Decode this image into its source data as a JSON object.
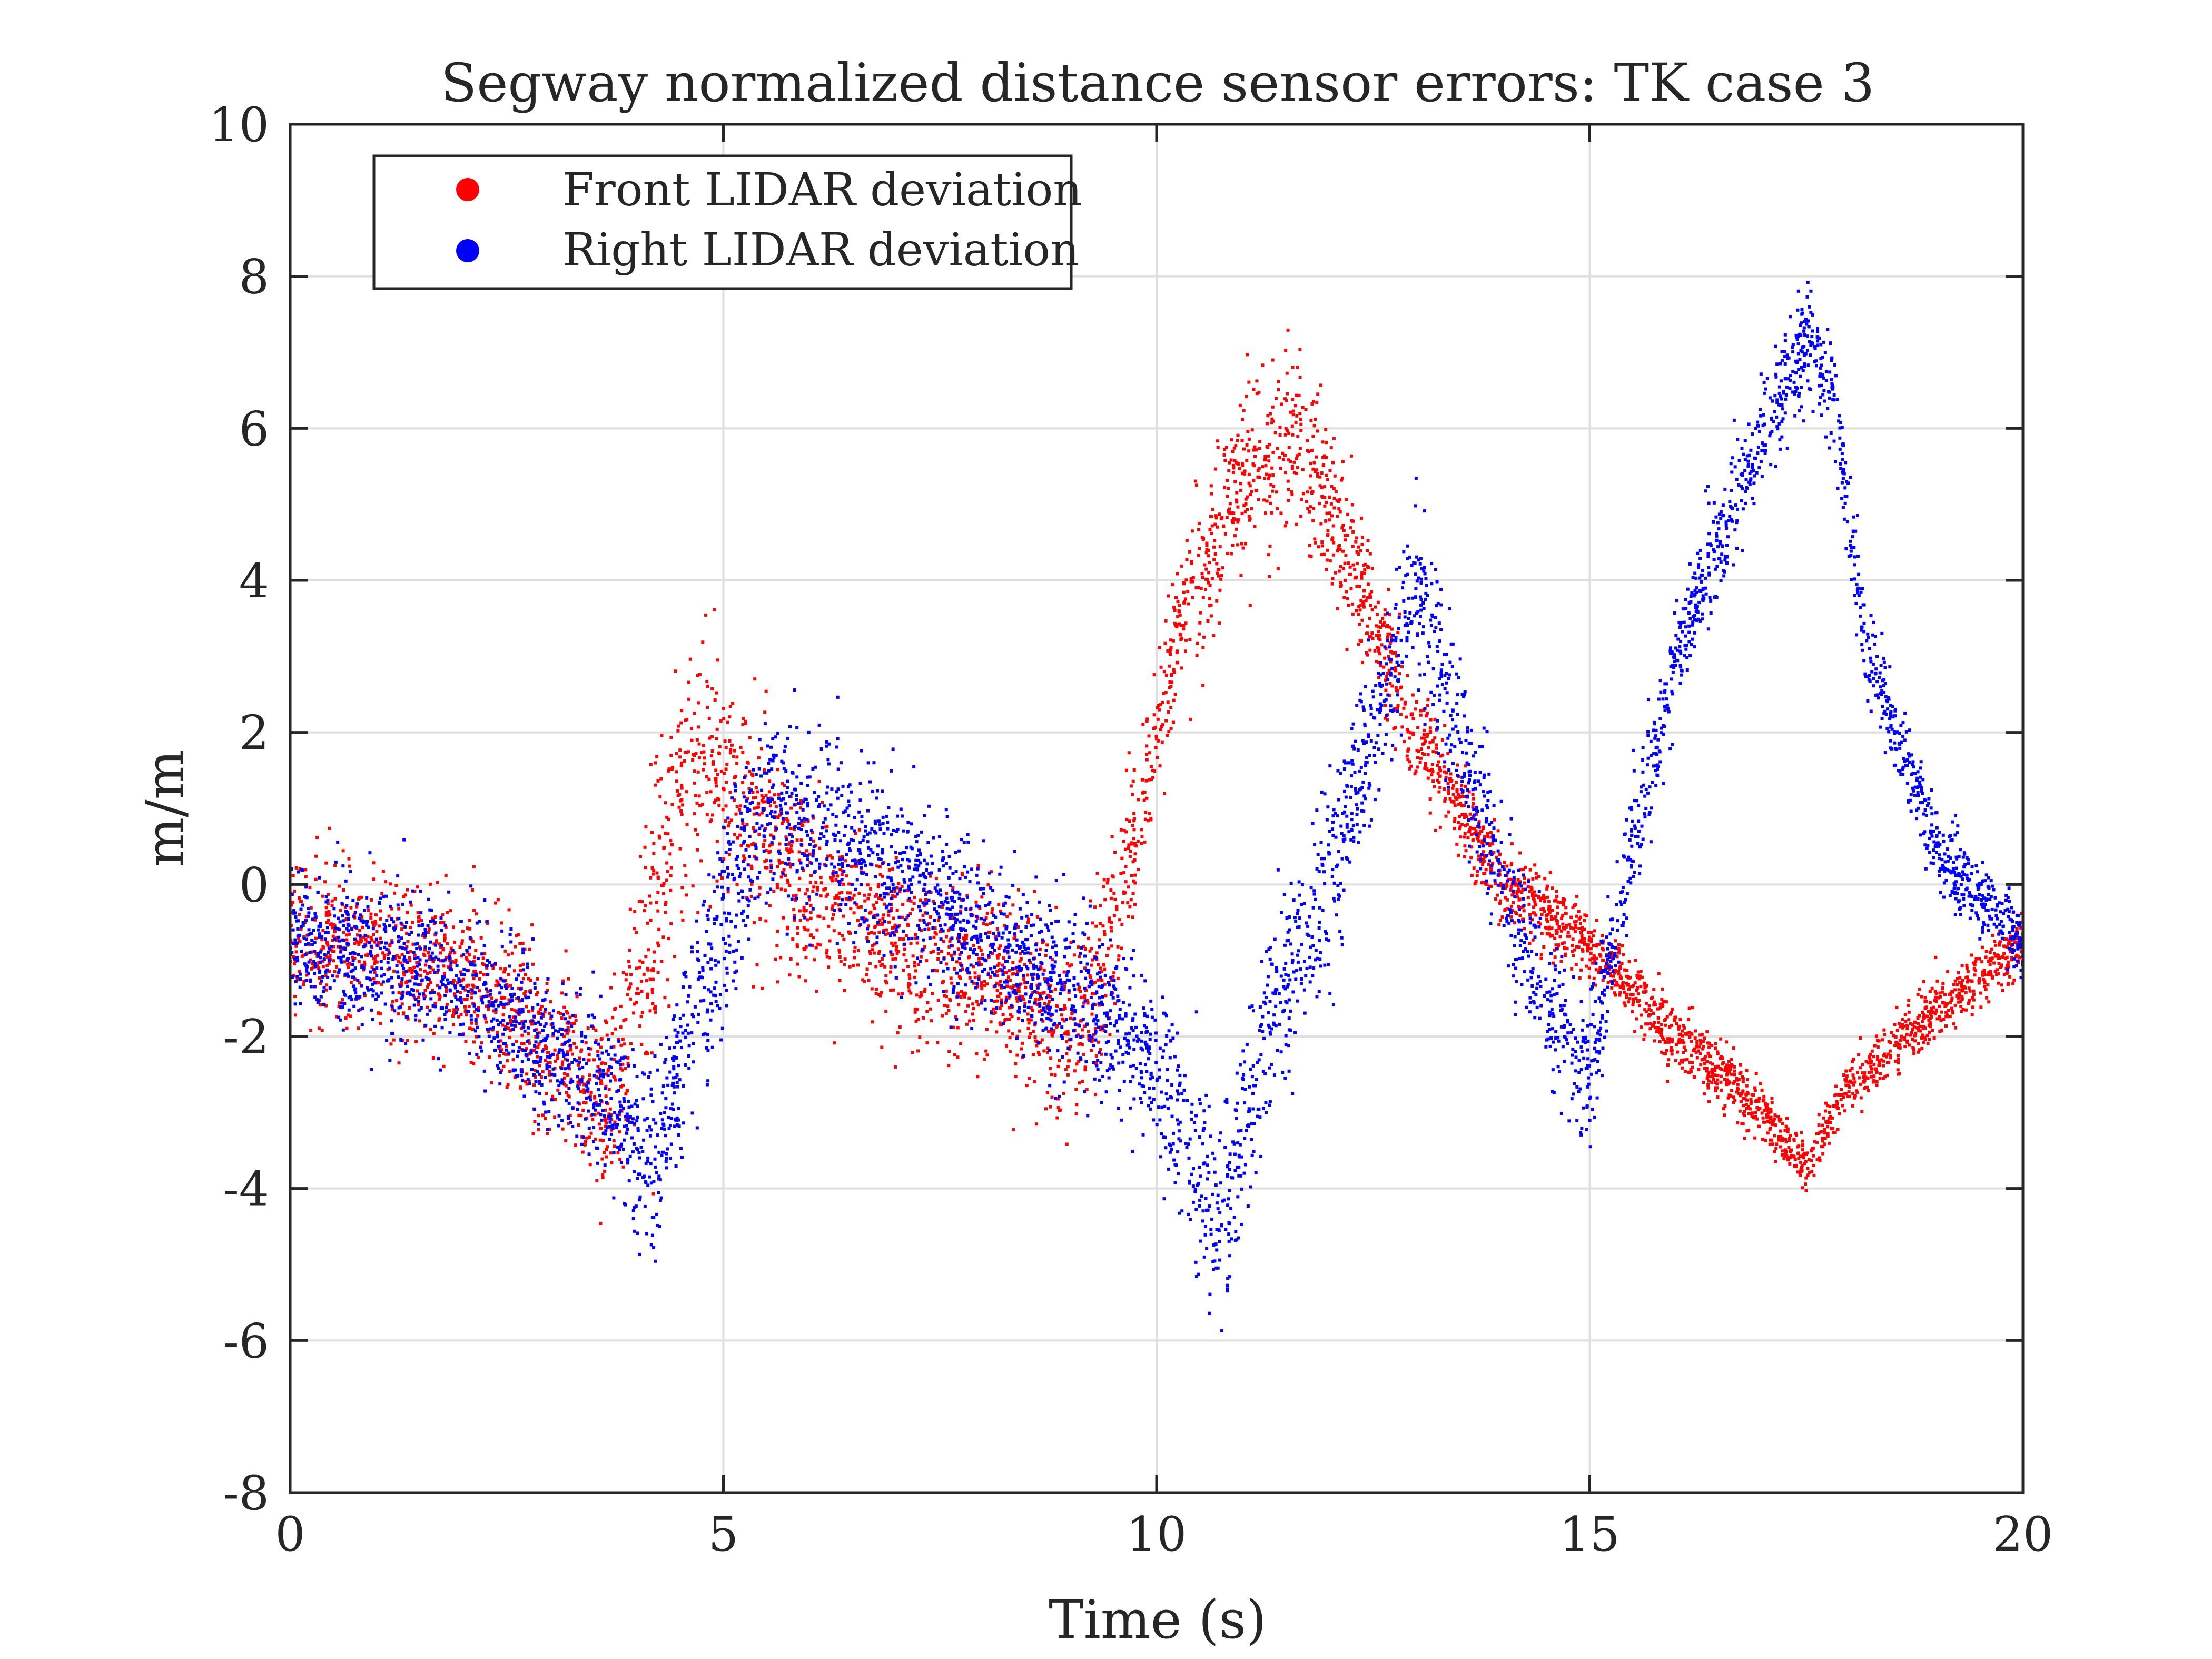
{
  "chart_data": {
    "type": "scatter",
    "title": "Segway normalized distance sensor errors: TK case 3",
    "xlabel": "Time (s)",
    "ylabel": "m/m",
    "xlim": [
      0,
      20
    ],
    "ylim": [
      -8,
      10
    ],
    "xticks": [
      0,
      5,
      10,
      15,
      20
    ],
    "yticks": [
      -8,
      -6,
      -4,
      -2,
      0,
      2,
      4,
      6,
      8,
      10
    ],
    "xtick_labels": [
      "0",
      "5",
      "10",
      "15",
      "20"
    ],
    "ytick_labels": [
      "-8",
      "-6",
      "-4",
      "-2",
      "0",
      "2",
      "4",
      "6",
      "8",
      "10"
    ],
    "grid": true,
    "legend_position": "top-left",
    "series": [
      {
        "name": "Front LIDAR deviation",
        "color": "#ff0000",
        "trend": {
          "x": [
            0,
            1,
            2,
            3,
            3.7,
            4.0,
            4.4,
            4.8,
            5.3,
            6.0,
            7.0,
            8.0,
            9.0,
            9.3,
            9.7,
            10.3,
            11.0,
            11.5,
            12.0,
            12.5,
            13.0,
            14.0,
            15.0,
            16.0,
            17.0,
            17.5,
            18.0,
            19.0,
            20.0
          ],
          "y": [
            -0.7,
            -0.9,
            -1.2,
            -2.2,
            -3.0,
            -1.5,
            0.8,
            1.8,
            1.0,
            0.0,
            -0.7,
            -1.2,
            -1.9,
            -1.5,
            0.5,
            3.5,
            5.4,
            6.0,
            5.0,
            3.5,
            2.0,
            0.0,
            -0.8,
            -2.0,
            -3.0,
            -3.7,
            -2.6,
            -1.7,
            -0.7
          ]
        },
        "spread": [
          0.5,
          0.5,
          0.55,
          0.55,
          0.6,
          0.9,
          1.0,
          0.9,
          0.7,
          0.6,
          0.55,
          0.55,
          0.55,
          0.6,
          0.5,
          0.5,
          0.55,
          0.6,
          0.55,
          0.4,
          0.3,
          0.25,
          0.2,
          0.2,
          0.2,
          0.2,
          0.2,
          0.2,
          0.2
        ]
      },
      {
        "name": "Right LIDAR deviation",
        "color": "#0000ff",
        "trend": {
          "x": [
            0,
            1,
            2,
            3,
            3.7,
            4.2,
            4.6,
            5.0,
            5.5,
            6.0,
            7.0,
            8.0,
            9.0,
            9.7,
            10.3,
            10.7,
            11.3,
            12.0,
            12.5,
            13.0,
            13.5,
            14.0,
            14.5,
            15.0,
            15.4,
            16.0,
            16.5,
            17.0,
            17.5,
            17.8,
            18.2,
            19.0,
            20.0
          ],
          "y": [
            -0.7,
            -1.0,
            -1.3,
            -2.2,
            -2.8,
            -3.7,
            -2.0,
            -0.5,
            1.0,
            0.8,
            0.2,
            -0.8,
            -1.4,
            -2.0,
            -3.0,
            -4.5,
            -2.0,
            0.0,
            2.0,
            4.0,
            2.0,
            0.0,
            -1.5,
            -2.5,
            0.0,
            3.0,
            4.5,
            6.0,
            7.2,
            6.5,
            3.0,
            0.5,
            -0.8
          ]
        },
        "spread": [
          0.4,
          0.45,
          0.5,
          0.5,
          0.55,
          0.6,
          0.7,
          0.7,
          0.7,
          0.65,
          0.6,
          0.55,
          0.55,
          0.5,
          0.6,
          0.7,
          0.6,
          0.55,
          0.55,
          0.6,
          0.55,
          0.5,
          0.5,
          0.5,
          0.4,
          0.35,
          0.35,
          0.35,
          0.4,
          0.35,
          0.3,
          0.25,
          0.2
        ]
      }
    ]
  }
}
